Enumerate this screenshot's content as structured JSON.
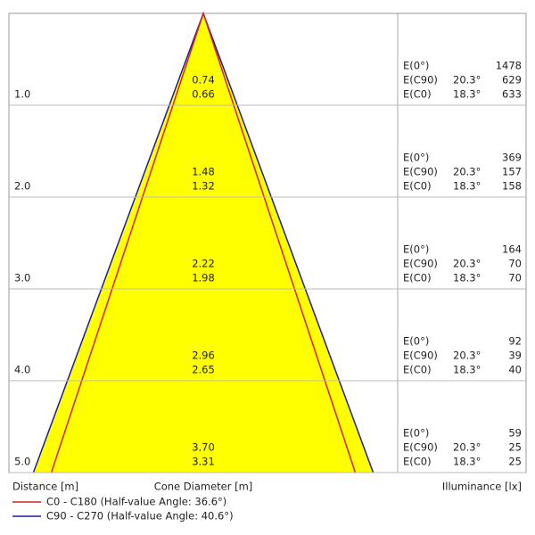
{
  "header": {
    "distance": "Distance [m]",
    "diameter": "Cone Diameter [m]",
    "illuminance": "Illuminance [lx]"
  },
  "rows": [
    {
      "distance": "1.0",
      "c90_diameter": "0.74",
      "c0_diameter": "0.66",
      "e0_label": "E(0°)",
      "e0": 1478,
      "ec90_label": "E(C90)",
      "ec90_angle": "20.3°",
      "ec90": 629,
      "ec0_label": "E(C0)",
      "ec0_angle": "18.3°",
      "ec0": 633
    },
    {
      "distance": "2.0",
      "c90_diameter": "1.48",
      "c0_diameter": "1.32",
      "e0_label": "E(0°)",
      "e0": 369,
      "ec90_label": "E(C90)",
      "ec90_angle": "20.3°",
      "ec90": 157,
      "ec0_label": "E(C0)",
      "ec0_angle": "18.3°",
      "ec0": 158
    },
    {
      "distance": "3.0",
      "c90_diameter": "2.22",
      "c0_diameter": "1.98",
      "e0_label": "E(0°)",
      "e0": 164,
      "ec90_label": "E(C90)",
      "ec90_angle": "20.3°",
      "ec90": 70,
      "ec0_label": "E(C0)",
      "ec0_angle": "18.3°",
      "ec0": 70
    },
    {
      "distance": "4.0",
      "c90_diameter": "2.96",
      "c0_diameter": "2.65",
      "e0_label": "E(0°)",
      "e0": 92,
      "ec90_label": "E(C90)",
      "ec90_angle": "20.3°",
      "ec90": 39,
      "ec0_label": "E(C0)",
      "ec0_angle": "18.3°",
      "ec0": 40
    },
    {
      "distance": "5.0",
      "c90_diameter": "3.70",
      "c0_diameter": "3.31",
      "e0_label": "E(0°)",
      "e0": 59,
      "ec90_label": "E(C90)",
      "ec90_angle": "20.3°",
      "ec90": 25,
      "ec0_label": "E(C0)",
      "ec0_angle": "18.3°",
      "ec0": 25
    }
  ],
  "legend": [
    {
      "label": "C0 - C180 (Half-value Angle: 36.6°)",
      "color": "#d42020"
    },
    {
      "label": "C90 - C270 (Half-value Angle: 40.6°)",
      "color": "#1c1ca0"
    }
  ]
}
